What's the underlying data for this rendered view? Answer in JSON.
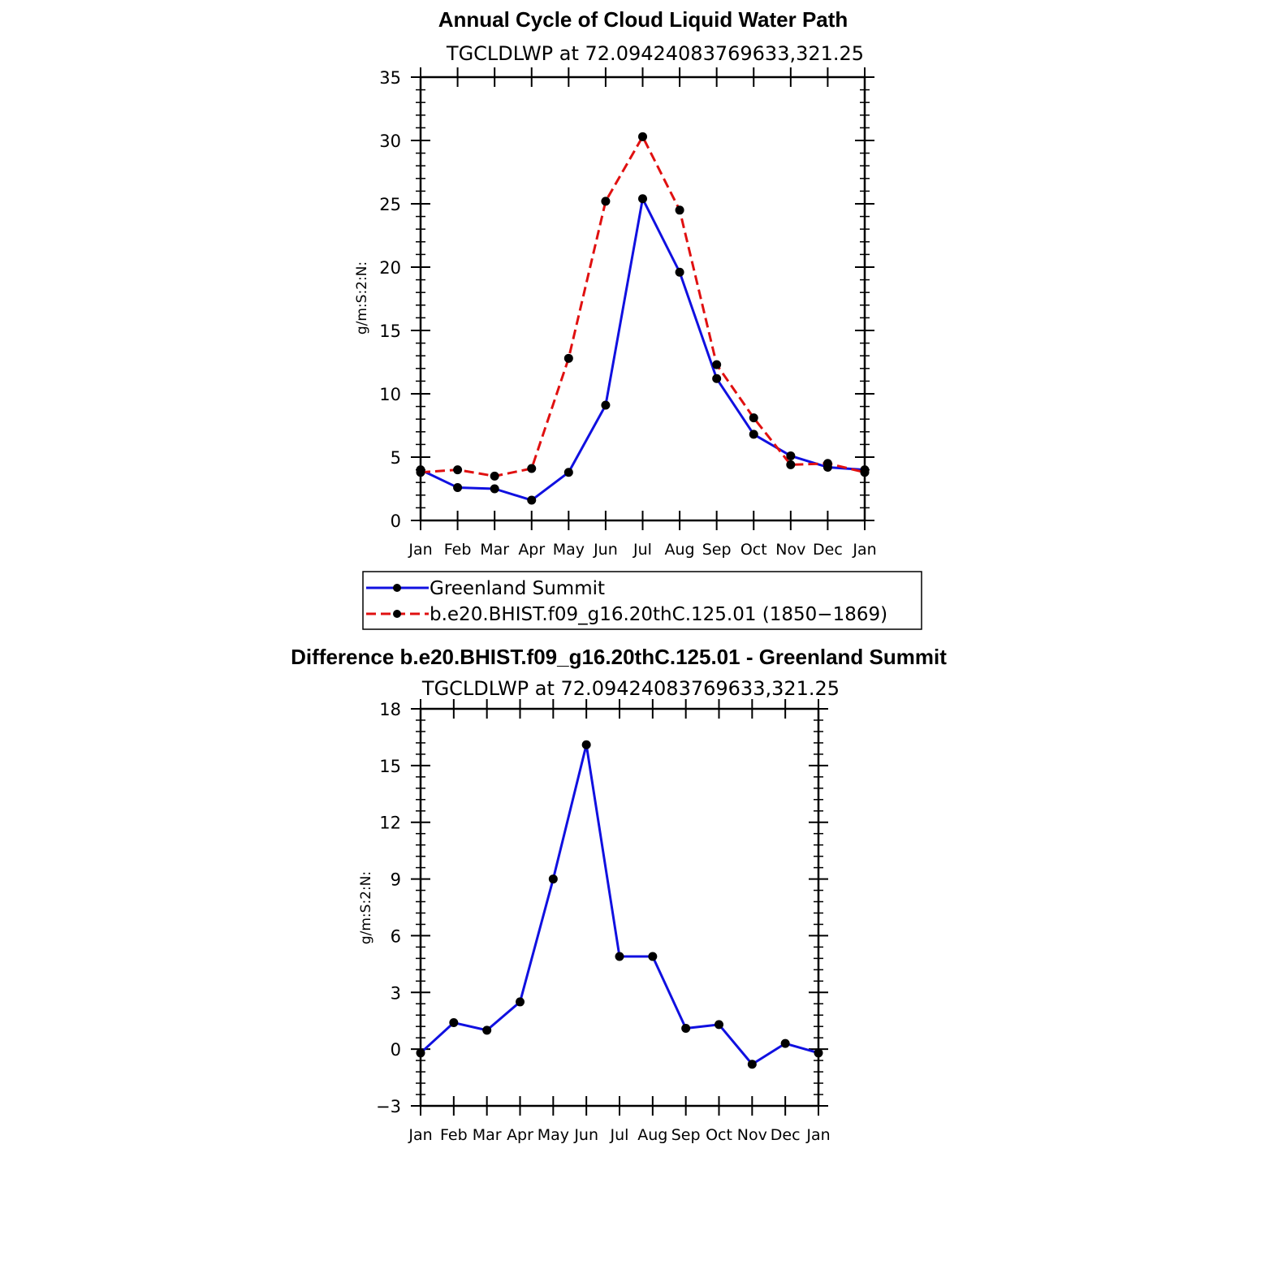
{
  "chart_data": [
    {
      "type": "line",
      "title": "Annual Cycle of Cloud Liquid Water Path",
      "subtitle": "TGCLDLWP at 72.09424083769633,321.25",
      "xlabel": "",
      "ylabel": "g/m:S:2:N:",
      "categories": [
        "Jan",
        "Feb",
        "Mar",
        "Apr",
        "May",
        "Jun",
        "Jul",
        "Aug",
        "Sep",
        "Oct",
        "Nov",
        "Dec",
        "Jan"
      ],
      "ylim": [
        0,
        35
      ],
      "yticks": [
        0,
        5,
        10,
        15,
        20,
        25,
        30,
        35
      ],
      "grid": false,
      "legend_position": "bottom",
      "series": [
        {
          "name": "Greenland Summit",
          "color": "#1010e0",
          "dash": "solid",
          "values": [
            4.0,
            2.6,
            2.5,
            1.6,
            3.8,
            9.1,
            25.4,
            19.6,
            11.2,
            6.8,
            5.1,
            4.2,
            4.0
          ]
        },
        {
          "name": "b.e20.BHIST.f09_g16.20thC.125.01 (1850−1869)",
          "color": "#e01010",
          "dash": "dashed",
          "values": [
            3.8,
            4.0,
            3.5,
            4.1,
            12.8,
            25.2,
            30.3,
            24.5,
            12.3,
            8.1,
            4.4,
            4.5,
            3.8
          ]
        }
      ]
    },
    {
      "type": "line",
      "title": "Difference b.e20.BHIST.f09_g16.20thC.125.01 - Greenland Summit",
      "subtitle": "TGCLDLWP at 72.09424083769633,321.25",
      "xlabel": "",
      "ylabel": "g/m:S:2:N:",
      "categories": [
        "Jan",
        "Feb",
        "Mar",
        "Apr",
        "May",
        "Jun",
        "Jul",
        "Aug",
        "Sep",
        "Oct",
        "Nov",
        "Dec",
        "Jan"
      ],
      "ylim": [
        -3,
        18
      ],
      "yticks": [
        -3,
        0,
        3,
        6,
        9,
        12,
        15,
        18
      ],
      "ytick_labels": [
        "−3",
        "0",
        "3",
        "6",
        "9",
        "12",
        "15",
        "18"
      ],
      "grid": false,
      "series": [
        {
          "color": "#1010e0",
          "dash": "solid",
          "values": [
            -0.2,
            1.4,
            1.0,
            2.5,
            9.0,
            16.1,
            4.9,
            4.9,
            1.1,
            1.3,
            -0.8,
            0.3,
            -0.2
          ]
        }
      ]
    }
  ]
}
